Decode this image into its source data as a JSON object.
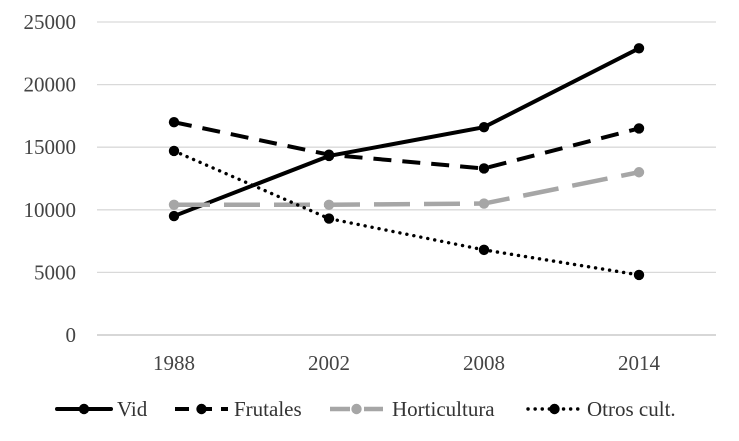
{
  "chart_data": {
    "type": "line",
    "title": "",
    "xlabel": "",
    "ylabel": "",
    "categories": [
      "1988",
      "2002",
      "2008",
      "2014"
    ],
    "ylim": [
      0,
      25000
    ],
    "yticks": [
      0,
      5000,
      10000,
      15000,
      20000,
      25000
    ],
    "grid": true,
    "legend_position": "bottom",
    "series": [
      {
        "name": "Vid",
        "values": [
          9500,
          14300,
          16600,
          22900
        ],
        "color": "#000000",
        "style": "solid"
      },
      {
        "name": "Frutales",
        "values": [
          17000,
          14400,
          13300,
          16500
        ],
        "color": "#000000",
        "style": "dashed"
      },
      {
        "name": "Horticultura",
        "values": [
          10400,
          10400,
          10500,
          13000
        ],
        "color": "#a6a6a6",
        "style": "long-dashed"
      },
      {
        "name": "Otros cult.",
        "values": [
          14700,
          9300,
          6800,
          4800
        ],
        "color": "#000000",
        "style": "dotted"
      }
    ]
  }
}
